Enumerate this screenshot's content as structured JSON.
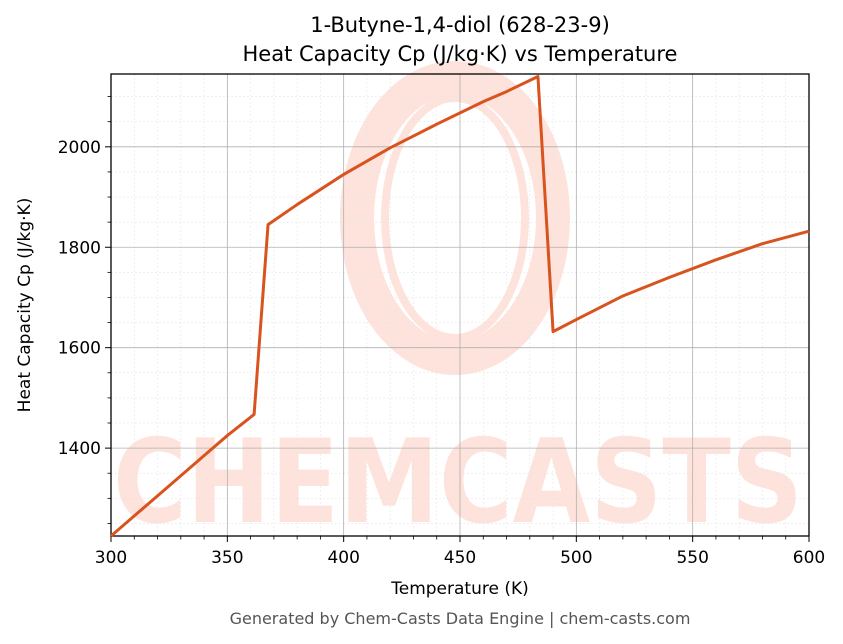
{
  "chart_data": {
    "type": "line",
    "title_line1": "1-Butyne-1,4-diol (628-23-9)",
    "title_line2": "Heat Capacity Cp (J/kg·K) vs Temperature",
    "xlabel": "Temperature (K)",
    "ylabel": "Heat Capacity Cp (J/kg·K)",
    "xlim": [
      300,
      600
    ],
    "ylim": [
      1225,
      2145
    ],
    "xticks": [
      300,
      350,
      400,
      450,
      500,
      550,
      600
    ],
    "yticks": [
      1400,
      1600,
      1800,
      2000
    ],
    "grid": true,
    "line_color": "#d9531e",
    "series": [
      {
        "x": [
          300,
          310,
          320,
          330,
          340,
          350,
          361.5,
          367.5,
          380,
          400,
          420,
          440,
          460,
          470,
          483.5,
          490,
          500,
          520,
          540,
          560,
          580,
          600
        ],
        "y": [
          1225,
          1265,
          1305,
          1345,
          1385,
          1425,
          1467,
          1845,
          1885,
          1945,
          1998,
          2045,
          2090,
          2110,
          2140,
          1632,
          1656,
          1703,
          1740,
          1775,
          1807,
          1832
        ]
      }
    ]
  },
  "watermark": "CHEMCASTS",
  "footer": "Generated by Chem-Casts Data Engine | chem-casts.com"
}
